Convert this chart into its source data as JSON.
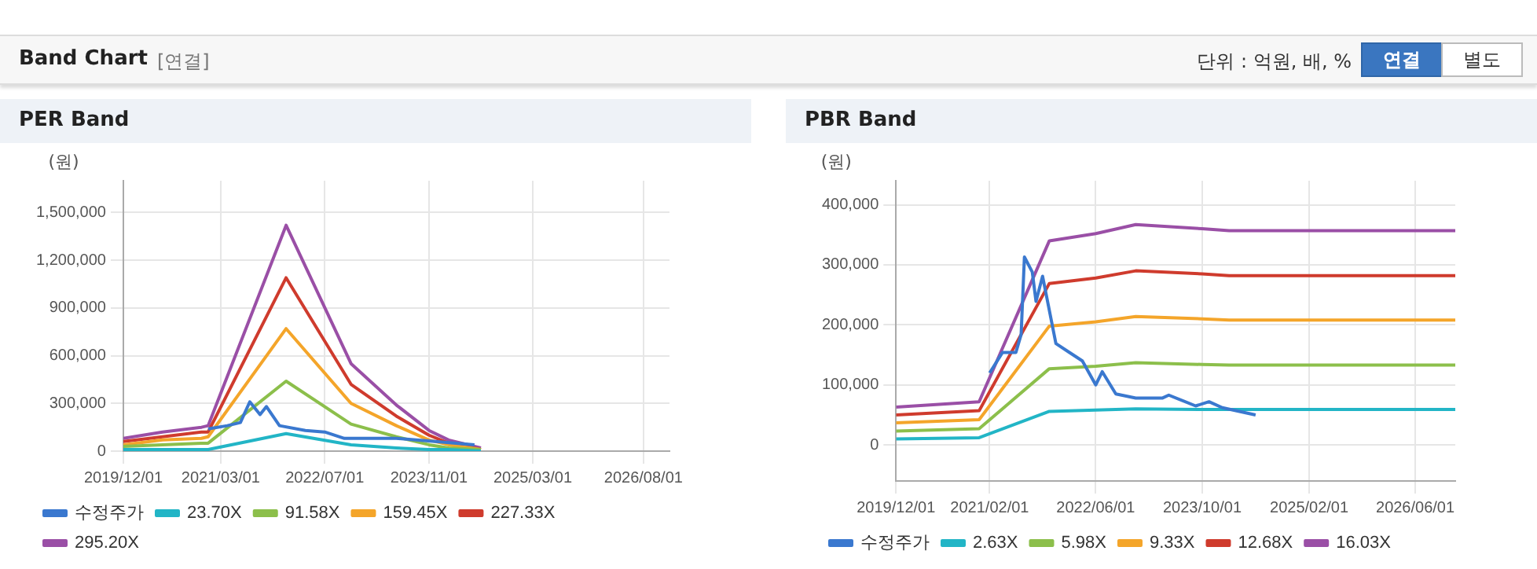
{
  "chart_data": [
    {
      "type": "other",
      "title": "Band Chart",
      "annotations": [
        "[연결]",
        "단위 : 억원, 배, %",
        "연결",
        "별도"
      ]
    },
    {
      "type": "line",
      "title": "PER Band",
      "ylabel": "(원)",
      "grid": true,
      "marker": "none",
      "line_style": "solid",
      "legend": "bottom",
      "xlim": [
        "2019-12-01",
        "2026-12-01"
      ],
      "xticks": [
        {
          "value": "2019-12-01",
          "label": "2019/12/01"
        },
        {
          "value": "2021-03-01",
          "label": "2021/03/01"
        },
        {
          "value": "2022-07-01",
          "label": "2022/07/01"
        },
        {
          "value": "2023-11-01",
          "label": "2023/11/01"
        },
        {
          "value": "2025-03-01",
          "label": "2025/03/01"
        },
        {
          "value": "2026-08-01",
          "label": "2026/08/01"
        }
      ],
      "ylim": [
        0,
        1700000
      ],
      "yticks": [
        {
          "value": 0,
          "label": "0"
        },
        {
          "value": 300000,
          "label": "300,000"
        },
        {
          "value": 600000,
          "label": "600,000"
        },
        {
          "value": 900000,
          "label": "900,000"
        },
        {
          "value": 1200000,
          "label": "1,200,000"
        },
        {
          "value": 1500000,
          "label": "1,500,000"
        }
      ],
      "x": [
        "2019-12-01",
        "2020-06-01",
        "2020-12-01",
        "2021-01-01",
        "2022-01-01",
        "2022-11-01",
        "2023-06-01",
        "2023-11-01",
        "2024-02-01",
        "2024-07-01"
      ],
      "series": [
        {
          "name": "수정주가",
          "color": "#3a78cf",
          "x": [
            "2021-01-01",
            "2021-04-01",
            "2021-06-01",
            "2021-07-15",
            "2021-09-01",
            "2021-10-01",
            "2021-12-01",
            "2022-04-01",
            "2022-07-01",
            "2022-10-01",
            "2023-06-01",
            "2023-12-01",
            "2024-06-01"
          ],
          "values": [
            140000,
            160000,
            180000,
            310000,
            230000,
            280000,
            160000,
            130000,
            120000,
            80000,
            80000,
            60000,
            40000
          ]
        },
        {
          "name": "23.70X",
          "color": "#22b5c6",
          "values": [
            10000,
            10000,
            10000,
            10000,
            110000,
            40000,
            20000,
            10000,
            10000,
            0
          ]
        },
        {
          "name": "91.58X",
          "color": "#8cbf4b",
          "values": [
            30000,
            40000,
            50000,
            50000,
            440000,
            170000,
            90000,
            40000,
            20000,
            10000
          ]
        },
        {
          "name": "159.45X",
          "color": "#f4a52a",
          "values": [
            40000,
            70000,
            80000,
            90000,
            770000,
            300000,
            160000,
            70000,
            40000,
            10000
          ]
        },
        {
          "name": "227.33X",
          "color": "#cf3b2d",
          "values": [
            60000,
            90000,
            120000,
            120000,
            1090000,
            420000,
            220000,
            100000,
            50000,
            10000
          ]
        },
        {
          "name": "295.20X",
          "color": "#9a4fa6",
          "values": [
            80000,
            120000,
            150000,
            160000,
            1420000,
            550000,
            290000,
            130000,
            70000,
            20000
          ]
        }
      ]
    },
    {
      "type": "line",
      "title": "PBR Band",
      "ylabel": "(원)",
      "grid": true,
      "marker": "none",
      "line_style": "solid",
      "legend": "bottom",
      "xlim": [
        "2019-12-01",
        "2026-12-01"
      ],
      "xticks": [
        {
          "value": "2019-12-01",
          "label": "2019/12/01"
        },
        {
          "value": "2021-02-01",
          "label": "2021/02/01"
        },
        {
          "value": "2022-06-01",
          "label": "2022/06/01"
        },
        {
          "value": "2023-10-01",
          "label": "2023/10/01"
        },
        {
          "value": "2025-02-01",
          "label": "2025/02/01"
        },
        {
          "value": "2026-06-01",
          "label": "2026/06/01"
        }
      ],
      "ylim": [
        -60000,
        440000
      ],
      "yticks": [
        {
          "value": 0,
          "label": "0"
        },
        {
          "value": 100000,
          "label": "100,000"
        },
        {
          "value": 200000,
          "label": "200,000"
        },
        {
          "value": 300000,
          "label": "300,000"
        },
        {
          "value": 400000,
          "label": "400,000"
        }
      ],
      "x": [
        "2019-12-01",
        "2020-12-15",
        "2021-11-01",
        "2022-06-01",
        "2022-12-01",
        "2023-10-01",
        "2024-02-01",
        "2026-12-01"
      ],
      "series": [
        {
          "name": "수정주가",
          "color": "#3a78cf",
          "x": [
            "2021-02-01",
            "2021-04-01",
            "2021-06-01",
            "2021-06-25",
            "2021-07-10",
            "2021-08-15",
            "2021-09-01",
            "2021-10-01",
            "2021-12-01",
            "2022-02-01",
            "2022-04-01",
            "2022-06-01",
            "2022-07-01",
            "2022-09-01",
            "2022-12-01",
            "2023-04-01",
            "2023-05-01",
            "2023-09-01",
            "2023-11-01",
            "2024-01-01",
            "2024-06-01"
          ],
          "values": [
            120000,
            154000,
            154000,
            184000,
            313000,
            288000,
            239000,
            281000,
            169000,
            154000,
            140000,
            100000,
            122000,
            85000,
            78000,
            78000,
            83000,
            65000,
            72000,
            62000,
            50000
          ]
        },
        {
          "name": "2.63X",
          "color": "#22b5c6",
          "values": [
            10000,
            12000,
            56000,
            58000,
            60000,
            59000,
            59000,
            59000
          ]
        },
        {
          "name": "5.98X",
          "color": "#8cbf4b",
          "values": [
            23000,
            27000,
            127000,
            131000,
            137000,
            134000,
            133000,
            133000
          ]
        },
        {
          "name": "9.33X",
          "color": "#f4a52a",
          "values": [
            37000,
            42000,
            198000,
            205000,
            214000,
            210000,
            208000,
            208000
          ]
        },
        {
          "name": "12.68X",
          "color": "#cf3b2d",
          "values": [
            50000,
            57000,
            269000,
            278000,
            290000,
            285000,
            282000,
            282000
          ]
        },
        {
          "name": "16.03X",
          "color": "#9a4fa6",
          "values": [
            63000,
            72000,
            340000,
            352000,
            367000,
            360000,
            357000,
            357000
          ]
        }
      ]
    }
  ]
}
